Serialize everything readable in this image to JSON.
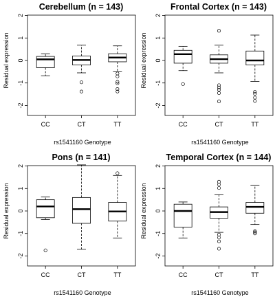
{
  "chart_data": [
    {
      "type": "box",
      "title": "Cerebellum (n = 143)",
      "xlabel": "rs1541160 Genotype",
      "ylabel": "Residual expression",
      "ylim": [
        -2.2,
        2.2
      ],
      "yticks": [
        -2,
        -1,
        0,
        1,
        2
      ],
      "categories": [
        "CC",
        "CT",
        "TT"
      ],
      "boxes": [
        {
          "whisker_low": -0.68,
          "q1": -0.32,
          "median": 0.05,
          "q3": 0.18,
          "whisker_high": 0.3,
          "outliers": []
        },
        {
          "whisker_low": -0.55,
          "q1": -0.2,
          "median": 0.02,
          "q3": 0.2,
          "whisker_high": 0.68,
          "outliers": [
            -0.97,
            -1.38
          ]
        },
        {
          "whisker_low": -0.5,
          "q1": -0.06,
          "median": 0.13,
          "q3": 0.3,
          "whisker_high": 0.65,
          "outliers": [
            -0.58,
            -0.71,
            -0.95,
            -1.02,
            -1.27,
            -1.38
          ]
        }
      ]
    },
    {
      "type": "box",
      "title": "Frontal Cortex (n = 143)",
      "xlabel": "rs1541160 Genotype",
      "ylabel": "Residual expression",
      "ylim": [
        -2.2,
        2.2
      ],
      "yticks": [
        -2,
        -1,
        0,
        1,
        2
      ],
      "categories": [
        "CC",
        "CT",
        "TT"
      ],
      "boxes": [
        {
          "whisker_low": -0.45,
          "q1": -0.12,
          "median": 0.28,
          "q3": 0.45,
          "whisker_high": 0.63,
          "outliers": [
            -1.05
          ]
        },
        {
          "whisker_low": -0.55,
          "q1": -0.12,
          "median": 0.06,
          "q3": 0.25,
          "whisker_high": 0.68,
          "outliers": [
            1.32,
            -1.1,
            -1.2,
            -1.3,
            -1.45,
            -1.82
          ]
        },
        {
          "whisker_low": -0.93,
          "q1": -0.2,
          "median": 0.0,
          "q3": 0.42,
          "whisker_high": 1.13,
          "outliers": [
            -1.4,
            -1.48,
            -1.65,
            -1.8
          ]
        }
      ]
    },
    {
      "type": "box",
      "title": "Pons (n = 141)",
      "xlabel": "rs1541160 Genotype",
      "ylabel": "Residual expression",
      "ylim": [
        -2.2,
        2.2
      ],
      "yticks": [
        -2,
        -1,
        0,
        1,
        2
      ],
      "categories": [
        "CC",
        "CT",
        "TT"
      ],
      "boxes": [
        {
          "whisker_low": -0.38,
          "q1": -0.3,
          "median": 0.2,
          "q3": 0.5,
          "whisker_high": 0.62,
          "outliers": [
            -1.75
          ]
        },
        {
          "whisker_low": -1.7,
          "q1": -0.55,
          "median": 0.08,
          "q3": 0.6,
          "whisker_high": 2.05,
          "outliers": []
        },
        {
          "whisker_low": -1.2,
          "q1": -0.45,
          "median": -0.02,
          "q3": 0.38,
          "whisker_high": 1.58,
          "outliers": [
            1.68
          ]
        }
      ]
    },
    {
      "type": "box",
      "title": "Temporal Cortex (n = 144)",
      "xlabel": "rs1541160 Genotype",
      "ylabel": "Residual expression",
      "ylim": [
        -2.2,
        2.2
      ],
      "yticks": [
        -2,
        -1,
        0,
        1,
        2
      ],
      "categories": [
        "CC",
        "CT",
        "TT"
      ],
      "boxes": [
        {
          "whisker_low": -1.2,
          "q1": -0.72,
          "median": 0.0,
          "q3": 0.3,
          "whisker_high": 0.4,
          "outliers": []
        },
        {
          "whisker_low": -0.95,
          "q1": -0.32,
          "median": -0.05,
          "q3": 0.18,
          "whisker_high": 0.72,
          "outliers": [
            1.02,
            1.18,
            1.3,
            -1.05,
            -1.18,
            -1.35,
            -1.68
          ]
        },
        {
          "whisker_low": -0.6,
          "q1": -0.1,
          "median": 0.18,
          "q3": 0.38,
          "whisker_high": 1.15,
          "outliers": [
            -0.9,
            -0.95,
            -1.0
          ]
        }
      ]
    }
  ]
}
